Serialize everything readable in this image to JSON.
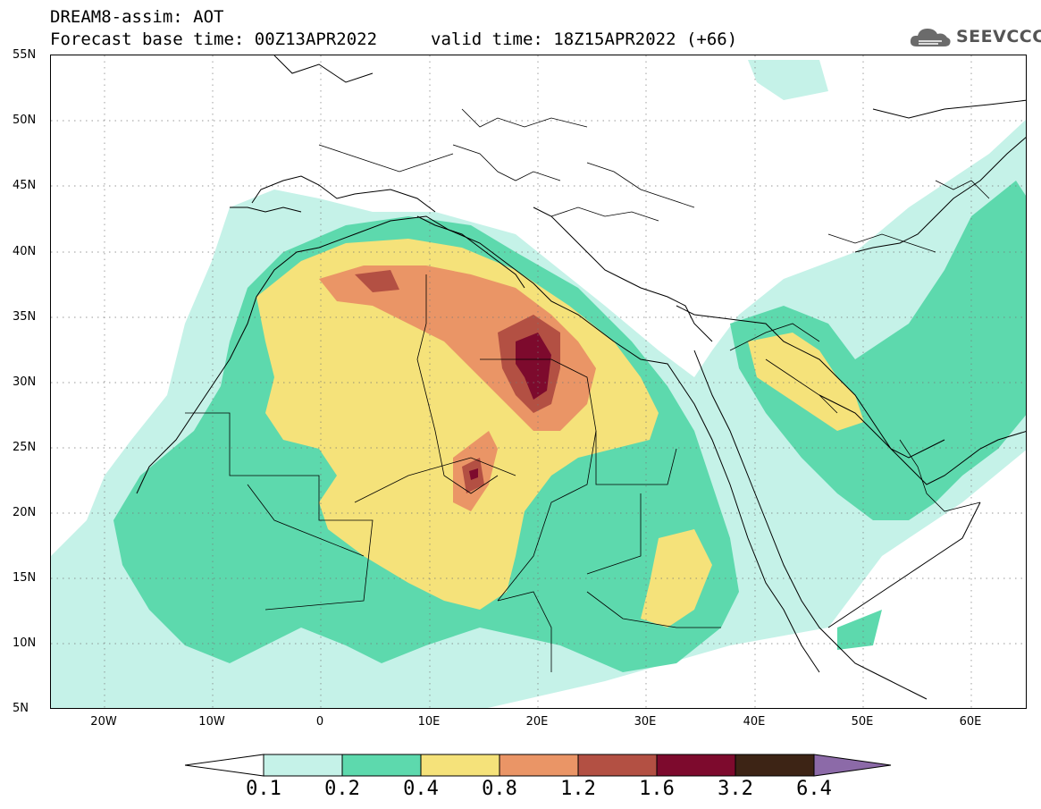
{
  "header": {
    "title": "DREAM8-assim: AOT",
    "base_time": "Forecast base time: 00Z13APR2022",
    "valid_time": "valid time: 18Z15APR2022 (+66)"
  },
  "logo": {
    "text": "SEEVCCC",
    "icon": "cloud-icon"
  },
  "axes": {
    "lat_labels": [
      "55N",
      "50N",
      "45N",
      "40N",
      "35N",
      "30N",
      "25N",
      "20N",
      "15N",
      "10N",
      "5N"
    ],
    "lon_labels": [
      "20W",
      "10W",
      "0",
      "10E",
      "20E",
      "30E",
      "40E",
      "50E",
      "60E"
    ]
  },
  "legend": {
    "levels": [
      "0.1",
      "0.2",
      "0.4",
      "0.8",
      "1.2",
      "1.6",
      "3.2",
      "6.4"
    ],
    "colors": [
      "#c5f2e8",
      "#5dd9ad",
      "#f5e27a",
      "#ea9566",
      "#b35043",
      "#7d0a2d",
      "#3d2415",
      "#8c6aa8"
    ],
    "under_color": "#ffffff"
  },
  "map": {
    "variable": "AOT",
    "lon_range": [
      -25,
      65
    ],
    "lat_range": [
      5,
      55
    ],
    "grid": true
  }
}
